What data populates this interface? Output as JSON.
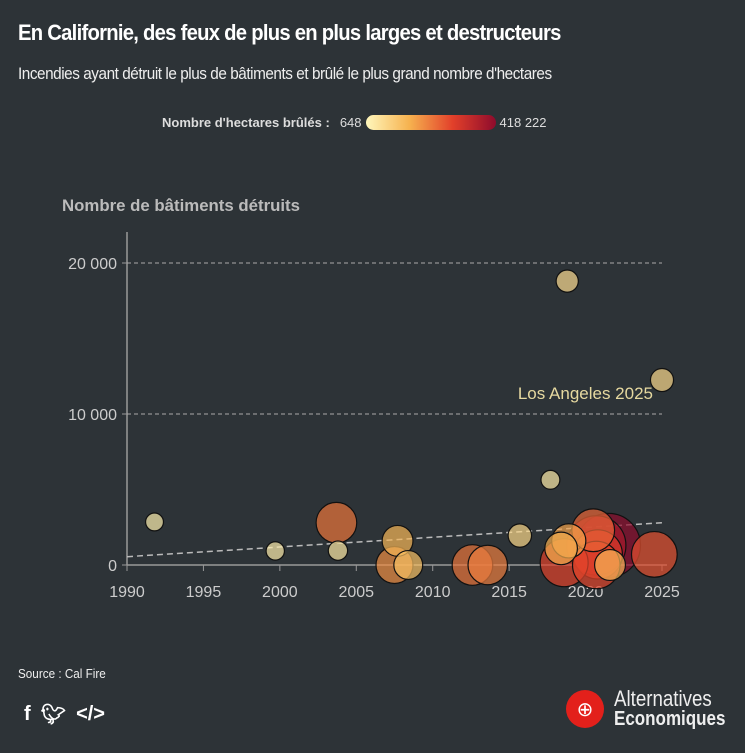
{
  "header": {
    "title": "En Californie, des feux de plus en plus larges et destructeurs",
    "subtitle": "Incendies ayant détruit le plus de bâtiments et brûlé le plus grand nombre d'hectares"
  },
  "legend": {
    "label": "Nombre d'hectares brûlés :",
    "min": "648",
    "max": "418 222",
    "colors": [
      "#fff7bc",
      "#f6b24f",
      "#e2402a",
      "#8e0b2c"
    ]
  },
  "chart_data": {
    "type": "scatter",
    "title": "",
    "ylabel": "Nombre de bâtiments détruits",
    "xlabel": "",
    "xlim": [
      1990,
      2025
    ],
    "ylim": [
      0,
      22000
    ],
    "x_ticks": [
      1990,
      1995,
      2000,
      2005,
      2010,
      2015,
      2020,
      2025
    ],
    "x_tick_labels": [
      "1990",
      "1995",
      "2000",
      "2005",
      "2010",
      "2015",
      "2020",
      "2025"
    ],
    "y_ticks": [
      0,
      10000,
      20000
    ],
    "y_tick_labels": [
      "0",
      "10 000",
      "20 000"
    ],
    "gridlines": "horizontal dashed",
    "size_color_variable": "hectares",
    "annotation": {
      "text": "Los Angeles 2025",
      "x": 2025,
      "y": 12250
    },
    "trendline": {
      "x": [
        1990,
        2025
      ],
      "y": [
        550,
        2800
      ]
    },
    "points": [
      {
        "x": 1991.8,
        "y": 2850,
        "hectares": 650
      },
      {
        "x": 1999.7,
        "y": 930,
        "hectares": 1000
      },
      {
        "x": 2003.7,
        "y": 2800,
        "hectares": 110000
      },
      {
        "x": 2003.8,
        "y": 950,
        "hectares": 2000
      },
      {
        "x": 2007.7,
        "y": 1600,
        "hectares": 40000
      },
      {
        "x": 2007.5,
        "y": 0,
        "hectares": 80000
      },
      {
        "x": 2008.4,
        "y": 0,
        "hectares": 30000
      },
      {
        "x": 2012.6,
        "y": 0,
        "hectares": 110000
      },
      {
        "x": 2013.6,
        "y": 0,
        "hectares": 100000
      },
      {
        "x": 2015.7,
        "y": 1950,
        "hectares": 10000
      },
      {
        "x": 2017.7,
        "y": 5640,
        "hectares": 1500
      },
      {
        "x": 2018.8,
        "y": 18800,
        "hectares": 7000
      },
      {
        "x": 2025,
        "y": 12250,
        "hectares": 9000
      },
      {
        "x": 2018.4,
        "y": 1100,
        "hectares": 50000
      },
      {
        "x": 2018.9,
        "y": 1600,
        "hectares": 60000
      },
      {
        "x": 2020.5,
        "y": 2300,
        "hectares": 130000
      },
      {
        "x": 2018.6,
        "y": 150,
        "hectares": 185000
      },
      {
        "x": 2021.5,
        "y": 1300,
        "hectares": 418222
      },
      {
        "x": 2020.7,
        "y": 1300,
        "hectares": 340000
      },
      {
        "x": 2020.8,
        "y": 700,
        "hectares": 200000
      },
      {
        "x": 2020.7,
        "y": 0,
        "hectares": 180000
      },
      {
        "x": 2021.6,
        "y": 0,
        "hectares": 40000
      },
      {
        "x": 2024.5,
        "y": 700,
        "hectares": 160000
      }
    ]
  },
  "footer": {
    "source": "Source : Cal Fire",
    "brand_line1": "Alternatives",
    "brand_line2": "Economiques",
    "social": [
      "facebook",
      "twitter",
      "embed"
    ]
  }
}
